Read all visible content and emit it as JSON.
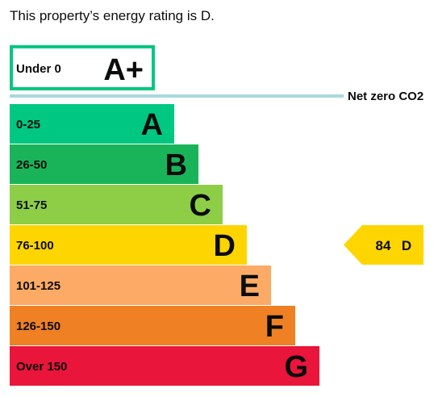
{
  "summary": "This property’s energy rating is D.",
  "chart_data": {
    "type": "bar",
    "title": "",
    "top_band": {
      "range": "Under 0",
      "letter": "A+",
      "border_color": "#00c781",
      "score": -1
    },
    "net_zero_label": "Net zero CO2",
    "net_zero_line_color": "#a8d8e2",
    "bands": [
      {
        "range": "0-25",
        "letter": "A",
        "color": "#00c781",
        "upper": 25
      },
      {
        "range": "26-50",
        "letter": "B",
        "color": "#19b459",
        "upper": 50
      },
      {
        "range": "51-75",
        "letter": "C",
        "color": "#8dce46",
        "upper": 75
      },
      {
        "range": "76-100",
        "letter": "D",
        "color": "#ffd500",
        "upper": 100
      },
      {
        "range": "101-125",
        "letter": "E",
        "color": "#fcaa65",
        "upper": 125
      },
      {
        "range": "126-150",
        "letter": "F",
        "color": "#ef8023",
        "upper": 150
      },
      {
        "range": "Over 150",
        "letter": "G",
        "color": "#e9153b",
        "upper": 175
      }
    ],
    "current": {
      "score": 84,
      "letter": "D",
      "color": "#ffd500"
    }
  }
}
